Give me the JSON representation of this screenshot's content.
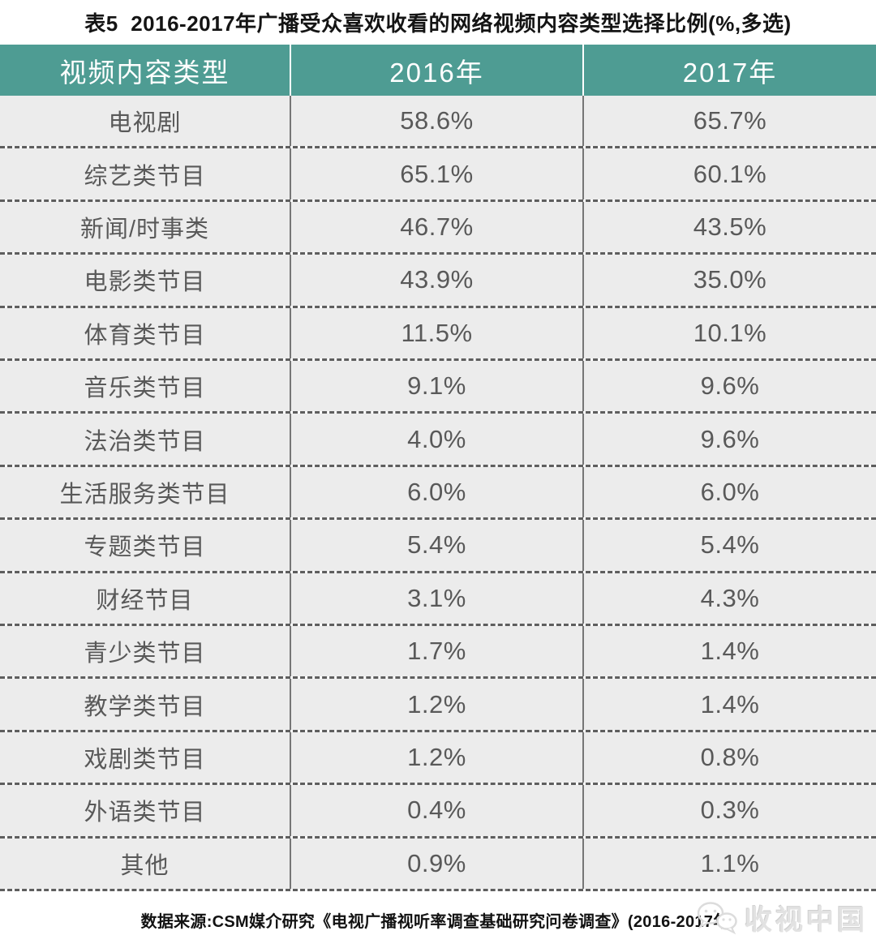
{
  "title": "表5  2016-2017年广播受众喜欢收看的网络视频内容类型选择比例(%,多选)",
  "table": {
    "columns": [
      "视频内容类型",
      "2016年",
      "2017年"
    ],
    "rows": [
      {
        "label": "电视剧",
        "y2016": "58.6%",
        "y2017": "65.7%"
      },
      {
        "label": "综艺类节目",
        "y2016": "65.1%",
        "y2017": "60.1%"
      },
      {
        "label": "新闻/时事类",
        "y2016": "46.7%",
        "y2017": "43.5%"
      },
      {
        "label": "电影类节目",
        "y2016": "43.9%",
        "y2017": "35.0%"
      },
      {
        "label": "体育类节目",
        "y2016": "11.5%",
        "y2017": "10.1%"
      },
      {
        "label": "音乐类节目",
        "y2016": "9.1%",
        "y2017": "9.6%"
      },
      {
        "label": "法治类节目",
        "y2016": "4.0%",
        "y2017": "9.6%"
      },
      {
        "label": "生活服务类节目",
        "y2016": "6.0%",
        "y2017": "6.0%"
      },
      {
        "label": "专题类节目",
        "y2016": "5.4%",
        "y2017": "5.4%"
      },
      {
        "label": "财经节目",
        "y2016": "3.1%",
        "y2017": "4.3%"
      },
      {
        "label": "青少类节目",
        "y2016": "1.7%",
        "y2017": "1.4%"
      },
      {
        "label": "教学类节目",
        "y2016": "1.2%",
        "y2017": "1.4%"
      },
      {
        "label": "戏剧类节目",
        "y2016": "1.2%",
        "y2017": "0.8%"
      },
      {
        "label": "外语类节目",
        "y2016": "0.4%",
        "y2017": "0.3%"
      },
      {
        "label": "其他",
        "y2016": "0.9%",
        "y2017": "1.1%"
      }
    ]
  },
  "footer": {
    "source": "数据来源:CSM媒介研究《电视广播视听率调查基础研究问卷调查》(2016-2017年)"
  },
  "watermark": {
    "text": "收视中国",
    "icon": "wechat-chat-bubbles-icon"
  },
  "colors": {
    "header_bg": "#4E9C93",
    "header_text": "#FFFFFF",
    "row_bg": "#ECECEC",
    "row_text": "#595959",
    "dashed_divider": "#5E5E5E",
    "column_divider": "#767676",
    "title_text": "#141414",
    "watermark_text": "#E2E2E2"
  },
  "chart_data": {
    "type": "table",
    "title": "表5 2016-2017年广播受众喜欢收看的网络视频内容类型选择比例(%,多选)",
    "categories": [
      "电视剧",
      "综艺类节目",
      "新闻/时事类",
      "电影类节目",
      "体育类节目",
      "音乐类节目",
      "法治类节目",
      "生活服务类节目",
      "专题类节目",
      "财经节目",
      "青少类节目",
      "教学类节目",
      "戏剧类节目",
      "外语类节目",
      "其他"
    ],
    "series": [
      {
        "name": "2016年",
        "values": [
          58.6,
          65.1,
          46.7,
          43.9,
          11.5,
          9.1,
          4.0,
          6.0,
          5.4,
          3.1,
          1.7,
          1.2,
          1.2,
          0.4,
          0.9
        ]
      },
      {
        "name": "2017年",
        "values": [
          65.7,
          60.1,
          43.5,
          35.0,
          10.1,
          9.6,
          9.6,
          6.0,
          5.4,
          4.3,
          1.4,
          1.4,
          0.8,
          0.3,
          1.1
        ]
      }
    ],
    "unit": "%",
    "source": "CSM媒介研究《电视广播视听率调查基础研究问卷调查》(2016-2017年)"
  }
}
